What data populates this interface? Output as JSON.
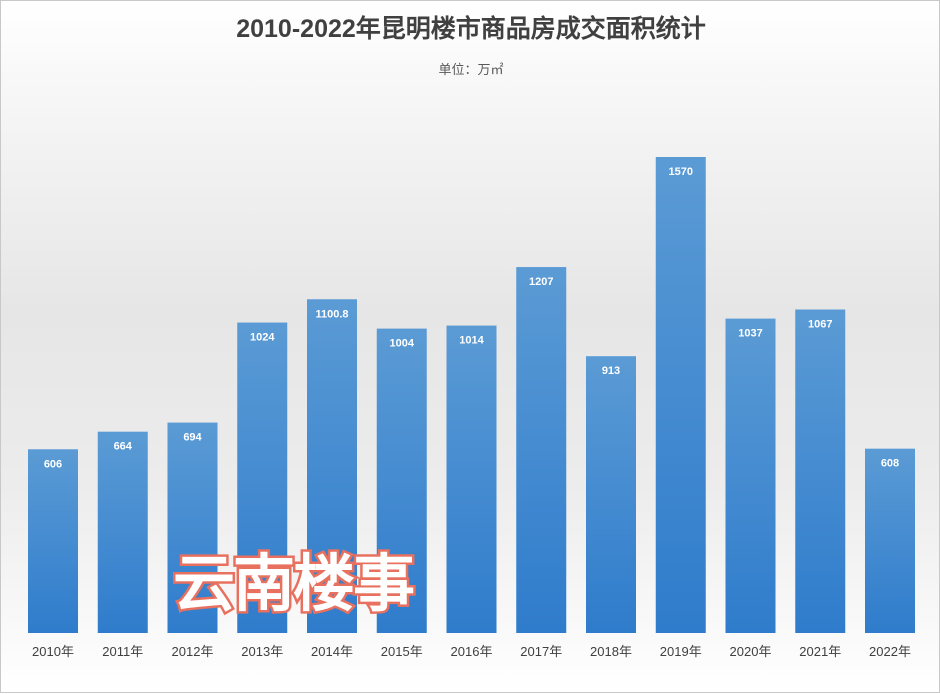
{
  "chart_data": {
    "type": "bar",
    "title": "2010-2022年昆明楼市商品房成交面积统计",
    "subtitle": "单位：万㎡",
    "categories": [
      "2010年",
      "2011年",
      "2012年",
      "2013年",
      "2014年",
      "2015年",
      "2016年",
      "2017年",
      "2018年",
      "2019年",
      "2020年",
      "2021年",
      "2022年"
    ],
    "values": [
      606,
      664,
      694,
      1024,
      1100.8,
      1004,
      1014,
      1207,
      913,
      1570,
      1037,
      1067,
      608
    ],
    "ylim": [
      0,
      1570
    ],
    "grid": false,
    "bar_color": "#3f88d0",
    "data_label_color": "#ffffff"
  },
  "watermark": "云南楼事"
}
